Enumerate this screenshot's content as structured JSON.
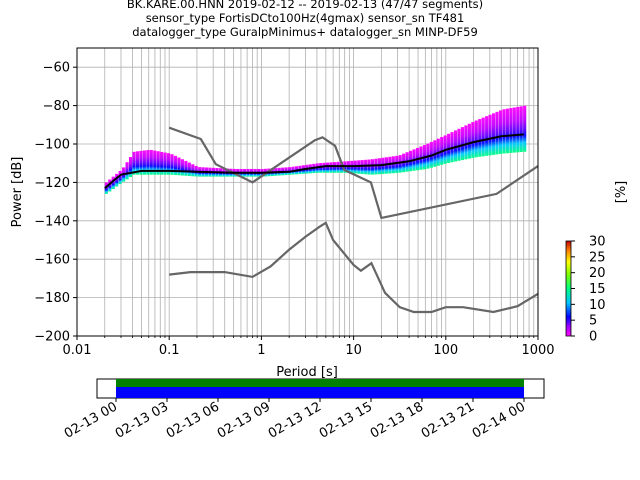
{
  "title_lines": [
    "BK.KARE.00.HNN   2019-02-12 -- 2019-02-13  (47/47 segments)",
    "sensor_type FortisDCto100Hz(4gmax) sensor_sn TF481",
    "datalogger_type GuralpMinimus+ datalogger_sn MINP-DF59"
  ],
  "chart_data": {
    "type": "heatmap",
    "xlabel": "Period [s]",
    "ylabel": "Power [dB]",
    "xscale": "log",
    "xlim": [
      0.01,
      1000
    ],
    "ylim": [
      -200,
      -50
    ],
    "grid": true,
    "x_ticks": [
      {
        "value": 0.01,
        "label": "0.01"
      },
      {
        "value": 0.1,
        "label": "0.1"
      },
      {
        "value": 1,
        "label": "1"
      },
      {
        "value": 10,
        "label": "10"
      },
      {
        "value": 100,
        "label": "100"
      },
      {
        "value": 1000,
        "label": "1000"
      }
    ],
    "y_ticks": [
      {
        "value": -60,
        "label": "−60"
      },
      {
        "value": -80,
        "label": "−80"
      },
      {
        "value": -100,
        "label": "−100"
      },
      {
        "value": -120,
        "label": "−120"
      },
      {
        "value": -140,
        "label": "−140"
      },
      {
        "value": -160,
        "label": "−160"
      },
      {
        "value": -180,
        "label": "−180"
      },
      {
        "value": -200,
        "label": "−200"
      }
    ],
    "noise_model_high": [
      [
        0.1,
        -91.5
      ],
      [
        0.22,
        -97.4
      ],
      [
        0.32,
        -110.5
      ],
      [
        0.8,
        -120
      ],
      [
        3.8,
        -98
      ],
      [
        4.6,
        -96.5
      ],
      [
        6.3,
        -101
      ],
      [
        7.9,
        -113.5
      ],
      [
        15.4,
        -120
      ],
      [
        20,
        -138.5
      ],
      [
        354.8,
        -126
      ],
      [
        1000,
        -111.5
      ]
    ],
    "noise_model_low": [
      [
        0.1,
        -168
      ],
      [
        0.17,
        -166.7
      ],
      [
        0.4,
        -166.7
      ],
      [
        0.8,
        -169.2
      ],
      [
        1.26,
        -163.7
      ],
      [
        2,
        -155
      ],
      [
        3.01,
        -148.3
      ],
      [
        4.3,
        -143
      ],
      [
        5,
        -141.1
      ],
      [
        6,
        -150
      ],
      [
        10,
        -163
      ],
      [
        12,
        -166
      ],
      [
        15.6,
        -162.1
      ],
      [
        21.9,
        -177.5
      ],
      [
        31.6,
        -185
      ],
      [
        45,
        -187.5
      ],
      [
        70,
        -187.5
      ],
      [
        100,
        -185
      ],
      [
        154,
        -185
      ],
      [
        328,
        -187.5
      ],
      [
        600,
        -184.5
      ],
      [
        1000,
        -178
      ]
    ],
    "mean_curve": [
      [
        0.02,
        -123
      ],
      [
        0.025,
        -119
      ],
      [
        0.03,
        -116
      ],
      [
        0.05,
        -114
      ],
      [
        0.1,
        -114
      ],
      [
        0.2,
        -114.5
      ],
      [
        0.5,
        -115
      ],
      [
        1,
        -115
      ],
      [
        2,
        -114.5
      ],
      [
        3,
        -113
      ],
      [
        5,
        -111.5
      ],
      [
        10,
        -111.5
      ],
      [
        20,
        -111
      ],
      [
        40,
        -109
      ],
      [
        70,
        -106
      ],
      [
        100,
        -103
      ],
      [
        200,
        -99
      ],
      [
        400,
        -96
      ],
      [
        700,
        -95
      ]
    ],
    "psd_spread": [
      {
        "period": 0.02,
        "lo": -126,
        "hi": -120
      },
      {
        "period": 0.03,
        "lo": -120,
        "hi": -113
      },
      {
        "period": 0.04,
        "lo": -116,
        "hi": -104
      },
      {
        "period": 0.06,
        "lo": -116,
        "hi": -103
      },
      {
        "period": 0.1,
        "lo": -116,
        "hi": -105
      },
      {
        "period": 0.2,
        "lo": -117,
        "hi": -112
      },
      {
        "period": 0.5,
        "lo": -117,
        "hi": -113
      },
      {
        "period": 1,
        "lo": -117,
        "hi": -113
      },
      {
        "period": 2,
        "lo": -116,
        "hi": -112
      },
      {
        "period": 4,
        "lo": -115,
        "hi": -110
      },
      {
        "period": 8,
        "lo": -115,
        "hi": -109
      },
      {
        "period": 15,
        "lo": -116,
        "hi": -108
      },
      {
        "period": 30,
        "lo": -115,
        "hi": -106
      },
      {
        "period": 60,
        "lo": -113,
        "hi": -100
      },
      {
        "period": 100,
        "lo": -110,
        "hi": -95
      },
      {
        "period": 200,
        "lo": -107,
        "hi": -88
      },
      {
        "period": 400,
        "lo": -105,
        "hi": -82
      },
      {
        "period": 700,
        "lo": -104,
        "hi": -80
      }
    ],
    "colorbar": {
      "label": "[%]",
      "min": 0,
      "max": 30,
      "ticks": [
        "0",
        "5",
        "10",
        "15",
        "20",
        "25",
        "30"
      ]
    },
    "coverage": {
      "labels": [
        "02-13 00",
        "02-13 03",
        "02-13 06",
        "02-13 09",
        "02-13 12",
        "02-13 15",
        "02-13 18",
        "02-13 21",
        "02-14 00"
      ],
      "data_color": "#0000ff",
      "gap_color": "#008000"
    }
  }
}
